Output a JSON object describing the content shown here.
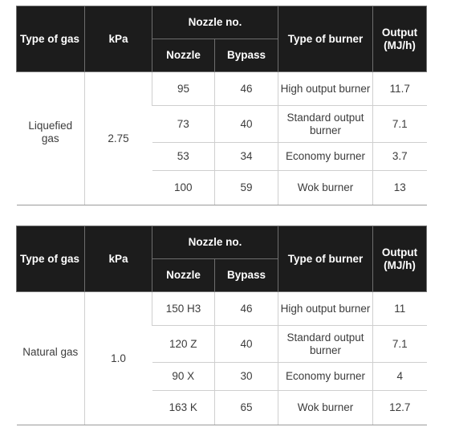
{
  "header": {
    "type_of_gas": "Type of gas",
    "kpa": "kPa",
    "nozzle_no": "Nozzle no.",
    "nozzle": "Nozzle",
    "bypass": "Bypass",
    "type_of_burner": "Type of burner",
    "output_line1": "Output",
    "output_line2": "(MJ/h)"
  },
  "tables": [
    {
      "gas": "Liquefied gas",
      "kpa": "2.75",
      "rows": [
        {
          "nozzle": "95",
          "bypass": "46",
          "burner": "High output burner",
          "output": "11.7"
        },
        {
          "nozzle": "73",
          "bypass": "40",
          "burner": "Standard output burner",
          "output": "7.1"
        },
        {
          "nozzle": "53",
          "bypass": "34",
          "burner": "Economy burner",
          "output": "3.7"
        },
        {
          "nozzle": "100",
          "bypass": "59",
          "burner": "Wok burner",
          "output": "13"
        }
      ]
    },
    {
      "gas": "Natural gas",
      "kpa": "1.0",
      "rows": [
        {
          "nozzle": "150 H3",
          "bypass": "46",
          "burner": "High output burner",
          "output": "11"
        },
        {
          "nozzle": "120 Z",
          "bypass": "40",
          "burner": "Standard output burner",
          "output": "7.1"
        },
        {
          "nozzle": "90 X",
          "bypass": "30",
          "burner": "Economy burner",
          "output": "4"
        },
        {
          "nozzle": "163 K",
          "bypass": "65",
          "burner": "Wok burner",
          "output": "12.7"
        }
      ]
    }
  ]
}
